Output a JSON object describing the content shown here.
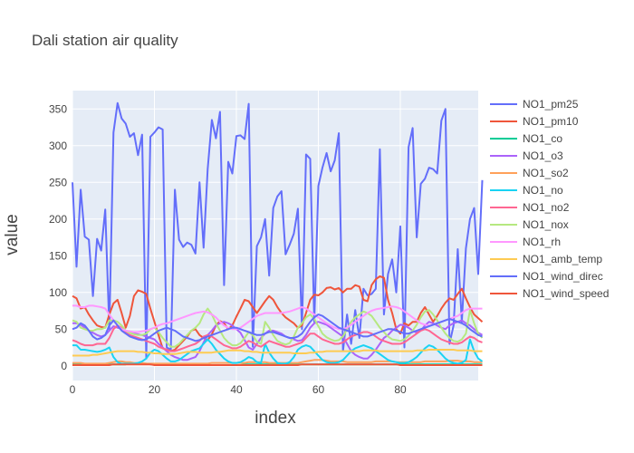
{
  "chart_data": {
    "type": "line",
    "title": "Dali station air quality",
    "xlabel": "index",
    "ylabel": "value",
    "xlim": [
      0,
      99
    ],
    "ylim": [
      -20,
      375
    ],
    "xticks": [
      0,
      20,
      40,
      60,
      80
    ],
    "yticks": [
      0,
      50,
      100,
      150,
      200,
      250,
      300,
      350
    ],
    "grid": true,
    "legend_position": "right",
    "colors": {
      "plot_bg": "#e5ecf6",
      "grid": "#ffffff",
      "text": "#444444"
    },
    "series": [
      {
        "name": "NO1_pm25",
        "color": "#636efa",
        "values": [
          250,
          135,
          240,
          176,
          172,
          95,
          173,
          157,
          213,
          50,
          318,
          358,
          337,
          330,
          312,
          317,
          287,
          315,
          10,
          312,
          318,
          325,
          322,
          25,
          22,
          240,
          172,
          162,
          168,
          165,
          153,
          250,
          161,
          268,
          335,
          310,
          346,
          110,
          278,
          262,
          313,
          314,
          309,
          357,
          26,
          163,
          175,
          200,
          123,
          215,
          231,
          238,
          152,
          165,
          180,
          214,
          50,
          288,
          282,
          60,
          245,
          270,
          290,
          265,
          280,
          317,
          20,
          70,
          30,
          76,
          38,
          105,
          96,
          98,
          105,
          295,
          70,
          125,
          145,
          100,
          190,
          25,
          298,
          324,
          175,
          248,
          255,
          270,
          268,
          262,
          334,
          350,
          30,
          55,
          159,
          60,
          160,
          200,
          215,
          125,
          253
        ]
      },
      {
        "name": "NO1_pm10",
        "color": "#ef553b",
        "values": [
          95,
          92,
          78,
          80,
          70,
          62,
          55,
          53,
          52,
          70,
          85,
          90,
          72,
          52,
          68,
          95,
          103,
          101,
          98,
          78,
          60,
          42,
          24,
          22,
          20,
          22,
          28,
          34,
          40,
          48,
          50,
          42,
          38,
          35,
          43,
          55,
          61,
          58,
          50,
          55,
          67,
          78,
          90,
          88,
          80,
          72,
          80,
          88,
          95,
          90,
          80,
          72,
          66,
          62,
          58,
          52,
          55,
          72,
          90,
          97,
          96,
          100,
          106,
          107,
          104,
          106,
          100,
          105,
          105,
          110,
          108,
          90,
          88,
          110,
          118,
          122,
          120,
          90,
          72,
          50,
          44,
          58,
          55,
          60,
          60,
          72,
          80,
          70,
          60,
          68,
          78,
          86,
          92,
          90,
          98,
          105,
          92,
          80,
          70,
          65,
          60
        ]
      },
      {
        "name": "NO1_co",
        "color": "#00cc96",
        "values": [
          2,
          2,
          2,
          2,
          2,
          2,
          2,
          2,
          2,
          2,
          2,
          2,
          2,
          2,
          3,
          3,
          3,
          3,
          3,
          2,
          2,
          2,
          2,
          2,
          2,
          2,
          2,
          2,
          2,
          2,
          1,
          1,
          1,
          1,
          1,
          1,
          1,
          1,
          1,
          1,
          1,
          1,
          2,
          2,
          2,
          2,
          2,
          2,
          2,
          2,
          2,
          2,
          2,
          2,
          2,
          2,
          2,
          2,
          2,
          2,
          2,
          2,
          2,
          2,
          2,
          2,
          2,
          2,
          2,
          2,
          2,
          2,
          2,
          2,
          2,
          2,
          2,
          2,
          2,
          2,
          2,
          2,
          2,
          2,
          2,
          2,
          2,
          2,
          2,
          2,
          2,
          2,
          2,
          2,
          2,
          2,
          2,
          2,
          2,
          2,
          2
        ]
      },
      {
        "name": "NO1_o3",
        "color": "#ab63fa",
        "values": [
          58,
          58,
          56,
          52,
          48,
          45,
          42,
          40,
          42,
          48,
          54,
          52,
          50,
          48,
          46,
          44,
          43,
          42,
          40,
          38,
          36,
          30,
          25,
          20,
          15,
          12,
          10,
          8,
          8,
          10,
          12,
          20,
          32,
          42,
          48,
          55,
          58,
          60,
          58,
          55,
          50,
          45,
          35,
          25,
          22,
          30,
          38,
          44,
          48,
          48,
          46,
          44,
          40,
          38,
          36,
          34,
          35,
          42,
          52,
          58,
          60,
          58,
          56,
          52,
          48,
          44,
          40,
          30,
          20,
          15,
          12,
          10,
          10,
          15,
          22,
          30,
          38,
          42,
          48,
          52,
          56,
          55,
          52,
          48,
          45,
          48,
          55,
          60,
          58,
          55,
          52,
          50,
          55,
          58,
          60,
          62,
          58,
          55,
          50,
          45,
          42
        ]
      },
      {
        "name": "NO1_so2",
        "color": "#ffa15a",
        "values": [
          4,
          4,
          4,
          3,
          3,
          3,
          3,
          3,
          3,
          4,
          5,
          6,
          6,
          5,
          5,
          4,
          4,
          4,
          3,
          3,
          3,
          3,
          3,
          3,
          3,
          3,
          3,
          3,
          3,
          3,
          3,
          3,
          3,
          3,
          4,
          4,
          4,
          4,
          4,
          4,
          4,
          4,
          4,
          5,
          5,
          5,
          5,
          5,
          4,
          4,
          4,
          4,
          4,
          4,
          4,
          4,
          5,
          6,
          7,
          8,
          8,
          8,
          7,
          6,
          6,
          6,
          6,
          5,
          5,
          5,
          5,
          5,
          5,
          5,
          6,
          6,
          6,
          6,
          6,
          5,
          5,
          5,
          5,
          5,
          5,
          5,
          6,
          6,
          6,
          6,
          6,
          6,
          7,
          7,
          7,
          6,
          6,
          6,
          5,
          5,
          5
        ]
      },
      {
        "name": "NO1_no",
        "color": "#19d3f3",
        "values": [
          28,
          28,
          22,
          22,
          21,
          20,
          19,
          20,
          22,
          25,
          12,
          5,
          3,
          3,
          3,
          3,
          4,
          6,
          10,
          18,
          22,
          20,
          15,
          10,
          6,
          6,
          8,
          12,
          16,
          20,
          22,
          24,
          30,
          36,
          30,
          22,
          16,
          10,
          6,
          4,
          4,
          5,
          8,
          12,
          10,
          5,
          4,
          30,
          18,
          10,
          4,
          3,
          3,
          5,
          12,
          22,
          26,
          28,
          26,
          20,
          14,
          8,
          5,
          4,
          4,
          5,
          8,
          14,
          20,
          24,
          26,
          28,
          26,
          24,
          20,
          16,
          12,
          8,
          6,
          5,
          4,
          4,
          5,
          8,
          12,
          18,
          24,
          28,
          26,
          22,
          16,
          10,
          6,
          4,
          3,
          4,
          8,
          36,
          20,
          10,
          6
        ]
      },
      {
        "name": "NO1_no2",
        "color": "#ff6692",
        "values": [
          35,
          33,
          30,
          28,
          28,
          28,
          30,
          30,
          30,
          38,
          50,
          55,
          52,
          45,
          42,
          40,
          38,
          36,
          34,
          32,
          30,
          26,
          24,
          22,
          20,
          20,
          22,
          24,
          26,
          28,
          30,
          34,
          40,
          42,
          40,
          36,
          32,
          28,
          26,
          24,
          24,
          26,
          30,
          34,
          32,
          28,
          26,
          30,
          34,
          32,
          30,
          28,
          26,
          26,
          28,
          30,
          32,
          38,
          44,
          44,
          40,
          36,
          34,
          32,
          30,
          30,
          32,
          36,
          40,
          42,
          44,
          46,
          46,
          44,
          40,
          36,
          34,
          32,
          30,
          30,
          30,
          32,
          36,
          40,
          44,
          48,
          50,
          48,
          44,
          40,
          36,
          34,
          32,
          30,
          30,
          32,
          36,
          40,
          38,
          34,
          32
        ]
      },
      {
        "name": "NO1_nox",
        "color": "#b6e880",
        "values": [
          62,
          60,
          52,
          50,
          48,
          48,
          50,
          50,
          52,
          62,
          62,
          60,
          55,
          48,
          45,
          43,
          42,
          42,
          44,
          50,
          52,
          46,
          38,
          32,
          26,
          26,
          30,
          36,
          42,
          48,
          52,
          58,
          70,
          78,
          70,
          58,
          48,
          38,
          32,
          28,
          28,
          31,
          38,
          46,
          42,
          33,
          30,
          60,
          52,
          42,
          34,
          31,
          29,
          31,
          40,
          52,
          58,
          66,
          70,
          64,
          54,
          44,
          39,
          36,
          34,
          35,
          40,
          50,
          60,
          66,
          70,
          74,
          72,
          68,
          60,
          52,
          46,
          40,
          36,
          35,
          34,
          36,
          41,
          48,
          56,
          66,
          74,
          76,
          70,
          62,
          52,
          44,
          38,
          34,
          33,
          36,
          44,
          76,
          58,
          44,
          38
        ]
      },
      {
        "name": "NO1_rh",
        "color": "#ff97ff",
        "values": [
          82,
          82,
          80,
          80,
          82,
          82,
          81,
          80,
          78,
          70,
          62,
          55,
          50,
          48,
          47,
          46,
          46,
          47,
          48,
          50,
          52,
          55,
          57,
          58,
          60,
          62,
          64,
          66,
          68,
          70,
          72,
          73,
          74,
          73,
          70,
          66,
          60,
          55,
          52,
          50,
          50,
          52,
          56,
          60,
          64,
          68,
          70,
          72,
          72,
          72,
          72,
          72,
          73,
          74,
          76,
          78,
          80,
          78,
          74,
          70,
          66,
          62,
          58,
          55,
          52,
          50,
          50,
          52,
          56,
          60,
          64,
          68,
          72,
          75,
          77,
          78,
          79,
          80,
          81,
          80,
          78,
          74,
          70,
          66,
          62,
          58,
          56,
          55,
          56,
          58,
          60,
          62,
          64,
          66,
          68,
          72,
          76,
          78,
          78,
          78,
          78
        ]
      },
      {
        "name": "NO1_amb_temp",
        "color": "#fecb52",
        "values": [
          14,
          14,
          14,
          14,
          14,
          15,
          15,
          16,
          17,
          18,
          19,
          20,
          20,
          20,
          20,
          20,
          19,
          19,
          18,
          18,
          17,
          17,
          16,
          16,
          16,
          16,
          17,
          18,
          19,
          19,
          19,
          18,
          18,
          18,
          18,
          19,
          19,
          20,
          21,
          21,
          21,
          21,
          20,
          20,
          19,
          19,
          18,
          18,
          18,
          18,
          18,
          18,
          18,
          18,
          17,
          17,
          17,
          17,
          18,
          18,
          19,
          19,
          20,
          20,
          20,
          20,
          20,
          20,
          20,
          20,
          20,
          21,
          21,
          21,
          21,
          20,
          20,
          20,
          20,
          20,
          20,
          20,
          20,
          20,
          21,
          21,
          21,
          22,
          22,
          22,
          22,
          22,
          22,
          22,
          21,
          21,
          21,
          21,
          20,
          20,
          20
        ]
      },
      {
        "name": "NO1_wind_direc",
        "color": "#636efa",
        "values": [
          50,
          52,
          58,
          55,
          48,
          40,
          36,
          38,
          42,
          55,
          62,
          55,
          48,
          44,
          40,
          38,
          36,
          35,
          36,
          40,
          44,
          48,
          50,
          52,
          50,
          48,
          44,
          40,
          38,
          36,
          34,
          35,
          38,
          40,
          42,
          44,
          46,
          48,
          50,
          52,
          52,
          50,
          48,
          46,
          44,
          42,
          42,
          44,
          46,
          46,
          44,
          42,
          40,
          38,
          38,
          40,
          44,
          52,
          60,
          66,
          70,
          68,
          64,
          60,
          56,
          52,
          50,
          48,
          46,
          44,
          42,
          40,
          40,
          42,
          44,
          46,
          48,
          50,
          50,
          48,
          46,
          44,
          44,
          46,
          48,
          50,
          52,
          54,
          56,
          58,
          60,
          62,
          64,
          62,
          60,
          58,
          55,
          50,
          46,
          42,
          40
        ]
      },
      {
        "name": "NO1_wind_speed",
        "color": "#ef553b",
        "values": [
          1,
          1,
          1,
          1,
          1,
          1,
          1,
          1,
          1,
          1,
          2,
          2,
          2,
          2,
          2,
          2,
          2,
          2,
          2,
          2,
          1,
          1,
          1,
          1,
          1,
          1,
          1,
          1,
          1,
          1,
          1,
          1,
          1,
          1,
          1,
          1,
          1,
          1,
          1,
          1,
          1,
          1,
          1,
          1,
          1,
          1,
          1,
          1,
          1,
          1,
          1,
          1,
          1,
          1,
          1,
          1,
          2,
          2,
          2,
          2,
          2,
          2,
          2,
          2,
          2,
          2,
          2,
          2,
          2,
          2,
          2,
          2,
          2,
          2,
          2,
          2,
          2,
          2,
          2,
          2,
          1,
          1,
          1,
          1,
          1,
          1,
          1,
          1,
          1,
          1,
          1,
          1,
          1,
          1,
          1,
          1,
          1,
          1,
          1,
          1,
          1
        ]
      }
    ]
  }
}
